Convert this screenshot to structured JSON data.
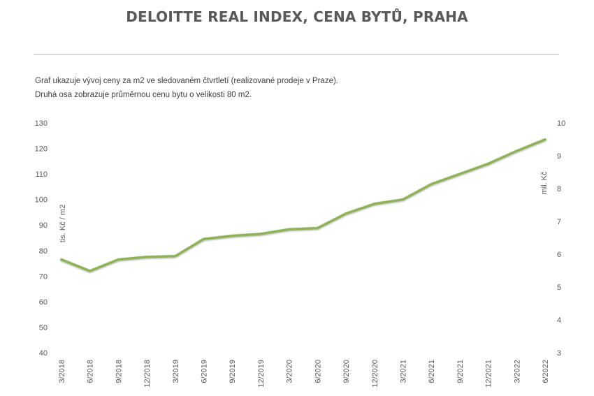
{
  "chart_data": {
    "type": "line",
    "title": "DELOITTE REAL INDEX, CENA BYTŮ, PRAHA",
    "subtitle_lines": [
      "Graf ukazuje vývoj ceny za m2 ve sledovaném čtvrtletí (realizované prodeje v Praze).",
      "Druhá osa zobrazuje průměrnou cenu bytu o velikosti 80 m2."
    ],
    "ylabel": "tis. Kč / m2",
    "y2label": "mil. Kč",
    "ylim": [
      40,
      130
    ],
    "y2lim": [
      3,
      10
    ],
    "yticks": [
      "130",
      "120",
      "110",
      "100",
      "90",
      "80",
      "70",
      "60",
      "50",
      "40"
    ],
    "y2ticks": [
      "10",
      "9",
      "8",
      "7",
      "6",
      "5",
      "4",
      "3"
    ],
    "xlabels": [
      "3/2018",
      "6/2018",
      "9/2018",
      "12/2018",
      "3/2019",
      "6/2019",
      "9/2019",
      "12/2019",
      "3/2020",
      "6/2020",
      "9/2020",
      "12/2020",
      "3/2021",
      "6/2021",
      "9/2021",
      "12/2021",
      "3/2022",
      "6/2022"
    ],
    "series": [
      {
        "values": [
          76.5,
          72,
          76.5,
          77.5,
          77.8,
          84.5,
          85.8,
          86.5,
          88.3,
          88.8,
          94.5,
          98.3,
          100,
          106,
          110,
          114,
          119,
          123.5
        ],
        "color": "#8db356"
      }
    ],
    "grid": false,
    "legend": "none"
  }
}
